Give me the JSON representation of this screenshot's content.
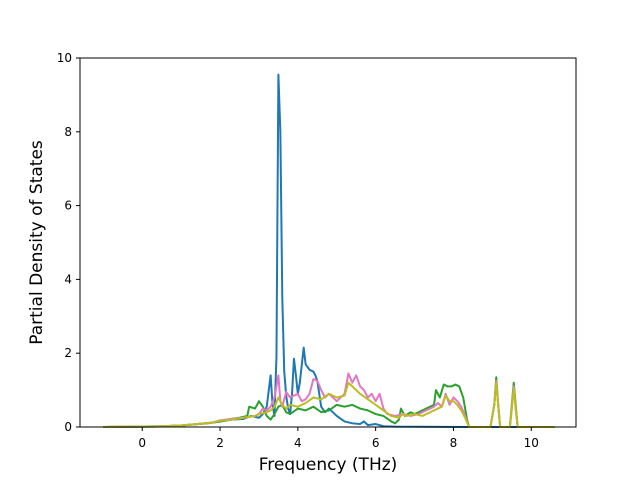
{
  "chart_data": {
    "type": "line",
    "title": "",
    "xlabel": "Frequency (THz)",
    "ylabel": "Partial Density of States",
    "xlim": [
      -1.6,
      11.15
    ],
    "ylim": [
      0,
      10
    ],
    "xticks": [
      0,
      2,
      4,
      6,
      8,
      10
    ],
    "yticks": [
      0,
      2,
      4,
      6,
      8,
      10
    ],
    "grid": false,
    "legend": "none",
    "series": [
      {
        "color": "#1f77b4",
        "points": [
          [
            -1.0,
            0
          ],
          [
            0.3,
            0.01
          ],
          [
            1.0,
            0.04
          ],
          [
            1.7,
            0.1
          ],
          [
            2.0,
            0.15
          ],
          [
            2.3,
            0.2
          ],
          [
            2.6,
            0.22
          ],
          [
            2.8,
            0.3
          ],
          [
            3.0,
            0.25
          ],
          [
            3.1,
            0.35
          ],
          [
            3.2,
            0.55
          ],
          [
            3.3,
            1.4
          ],
          [
            3.35,
            0.6
          ],
          [
            3.4,
            0.3
          ],
          [
            3.45,
            1.9
          ],
          [
            3.5,
            9.55
          ],
          [
            3.55,
            8.0
          ],
          [
            3.6,
            3.5
          ],
          [
            3.65,
            1.5
          ],
          [
            3.7,
            0.85
          ],
          [
            3.75,
            0.5
          ],
          [
            3.8,
            0.35
          ],
          [
            3.85,
            0.9
          ],
          [
            3.9,
            1.85
          ],
          [
            3.95,
            1.4
          ],
          [
            4.0,
            0.9
          ],
          [
            4.05,
            1.2
          ],
          [
            4.15,
            2.15
          ],
          [
            4.2,
            1.7
          ],
          [
            4.3,
            1.55
          ],
          [
            4.4,
            1.5
          ],
          [
            4.45,
            1.4
          ],
          [
            4.5,
            1.25
          ],
          [
            4.6,
            0.55
          ],
          [
            4.7,
            0.4
          ],
          [
            4.8,
            0.5
          ],
          [
            5.0,
            0.3
          ],
          [
            5.2,
            0.15
          ],
          [
            5.4,
            0.1
          ],
          [
            5.6,
            0.08
          ],
          [
            5.7,
            0.15
          ],
          [
            5.8,
            0.05
          ],
          [
            6.0,
            0.08
          ],
          [
            6.2,
            0.02
          ],
          [
            6.5,
            0.01
          ],
          [
            8.4,
            0
          ],
          [
            10.6,
            0
          ]
        ]
      },
      {
        "color": "#2ca02c",
        "points": [
          [
            -1.0,
            0
          ],
          [
            0.5,
            0.02
          ],
          [
            1.0,
            0.04
          ],
          [
            1.8,
            0.12
          ],
          [
            2.0,
            0.15
          ],
          [
            2.3,
            0.22
          ],
          [
            2.5,
            0.25
          ],
          [
            2.7,
            0.3
          ],
          [
            2.75,
            0.55
          ],
          [
            2.9,
            0.5
          ],
          [
            3.0,
            0.7
          ],
          [
            3.1,
            0.55
          ],
          [
            3.2,
            0.3
          ],
          [
            3.3,
            0.2
          ],
          [
            3.4,
            0.35
          ],
          [
            3.5,
            0.55
          ],
          [
            3.6,
            0.6
          ],
          [
            3.7,
            0.4
          ],
          [
            3.8,
            0.35
          ],
          [
            4.0,
            0.5
          ],
          [
            4.2,
            0.45
          ],
          [
            4.4,
            0.55
          ],
          [
            4.6,
            0.4
          ],
          [
            4.8,
            0.45
          ],
          [
            5.0,
            0.6
          ],
          [
            5.2,
            0.55
          ],
          [
            5.4,
            0.6
          ],
          [
            5.6,
            0.5
          ],
          [
            5.8,
            0.45
          ],
          [
            6.0,
            0.35
          ],
          [
            6.2,
            0.3
          ],
          [
            6.4,
            0.15
          ],
          [
            6.5,
            0.1
          ],
          [
            6.6,
            0.2
          ],
          [
            6.65,
            0.5
          ],
          [
            6.75,
            0.3
          ],
          [
            6.9,
            0.4
          ],
          [
            7.0,
            0.35
          ],
          [
            7.1,
            0.4
          ],
          [
            7.2,
            0.45
          ],
          [
            7.3,
            0.5
          ],
          [
            7.4,
            0.55
          ],
          [
            7.5,
            0.6
          ],
          [
            7.55,
            1.0
          ],
          [
            7.65,
            0.8
          ],
          [
            7.75,
            1.15
          ],
          [
            7.85,
            1.1
          ],
          [
            7.95,
            1.1
          ],
          [
            8.05,
            1.15
          ],
          [
            8.15,
            1.1
          ],
          [
            8.25,
            0.8
          ],
          [
            8.35,
            0.2
          ],
          [
            8.4,
            0
          ],
          [
            8.95,
            0
          ],
          [
            9.05,
            0.6
          ],
          [
            9.1,
            1.35
          ],
          [
            9.15,
            0.6
          ],
          [
            9.2,
            0
          ],
          [
            9.45,
            0
          ],
          [
            9.5,
            0.6
          ],
          [
            9.55,
            1.2
          ],
          [
            9.6,
            0.6
          ],
          [
            9.65,
            0
          ],
          [
            10.6,
            0
          ]
        ]
      },
      {
        "color": "#e377c2",
        "points": [
          [
            -1.0,
            0
          ],
          [
            0.5,
            0.02
          ],
          [
            1.0,
            0.04
          ],
          [
            1.8,
            0.12
          ],
          [
            2.0,
            0.18
          ],
          [
            2.3,
            0.22
          ],
          [
            2.6,
            0.25
          ],
          [
            2.9,
            0.3
          ],
          [
            3.0,
            0.35
          ],
          [
            3.1,
            0.5
          ],
          [
            3.2,
            0.45
          ],
          [
            3.3,
            0.55
          ],
          [
            3.4,
            0.8
          ],
          [
            3.5,
            1.4
          ],
          [
            3.55,
            0.7
          ],
          [
            3.6,
            0.55
          ],
          [
            3.7,
            0.95
          ],
          [
            3.8,
            0.8
          ],
          [
            3.9,
            0.85
          ],
          [
            4.0,
            0.9
          ],
          [
            4.1,
            0.7
          ],
          [
            4.2,
            0.75
          ],
          [
            4.3,
            0.9
          ],
          [
            4.4,
            1.3
          ],
          [
            4.5,
            1.25
          ],
          [
            4.6,
            1.0
          ],
          [
            4.7,
            0.8
          ],
          [
            4.8,
            0.9
          ],
          [
            5.0,
            0.7
          ],
          [
            5.2,
            0.9
          ],
          [
            5.3,
            1.45
          ],
          [
            5.4,
            1.2
          ],
          [
            5.5,
            1.4
          ],
          [
            5.6,
            1.1
          ],
          [
            5.7,
            1.0
          ],
          [
            5.8,
            0.8
          ],
          [
            5.9,
            0.9
          ],
          [
            6.0,
            0.7
          ],
          [
            6.1,
            0.9
          ],
          [
            6.2,
            0.5
          ],
          [
            6.3,
            0.35
          ],
          [
            6.5,
            0.3
          ],
          [
            6.7,
            0.35
          ],
          [
            6.9,
            0.3
          ],
          [
            7.1,
            0.35
          ],
          [
            7.3,
            0.45
          ],
          [
            7.5,
            0.55
          ],
          [
            7.6,
            0.65
          ],
          [
            7.7,
            0.55
          ],
          [
            7.8,
            0.9
          ],
          [
            7.9,
            0.6
          ],
          [
            8.0,
            0.8
          ],
          [
            8.1,
            0.7
          ],
          [
            8.2,
            0.55
          ],
          [
            8.3,
            0.3
          ],
          [
            8.4,
            0
          ],
          [
            8.95,
            0
          ],
          [
            9.05,
            0.6
          ],
          [
            9.1,
            1.25
          ],
          [
            9.15,
            0.6
          ],
          [
            9.2,
            0
          ],
          [
            9.45,
            0
          ],
          [
            9.5,
            0.5
          ],
          [
            9.55,
            1.1
          ],
          [
            9.6,
            0.5
          ],
          [
            9.65,
            0
          ],
          [
            10.6,
            0
          ]
        ]
      },
      {
        "color": "#bcbd22",
        "points": [
          [
            -1.0,
            0
          ],
          [
            0.5,
            0.02
          ],
          [
            1.0,
            0.04
          ],
          [
            1.8,
            0.12
          ],
          [
            2.0,
            0.17
          ],
          [
            2.3,
            0.2
          ],
          [
            2.6,
            0.25
          ],
          [
            2.9,
            0.3
          ],
          [
            3.0,
            0.35
          ],
          [
            3.2,
            0.4
          ],
          [
            3.3,
            0.45
          ],
          [
            3.4,
            0.55
          ],
          [
            3.5,
            0.8
          ],
          [
            3.6,
            0.6
          ],
          [
            3.7,
            0.5
          ],
          [
            3.8,
            0.6
          ],
          [
            4.0,
            0.55
          ],
          [
            4.2,
            0.65
          ],
          [
            4.4,
            0.8
          ],
          [
            4.6,
            0.75
          ],
          [
            4.8,
            0.9
          ],
          [
            5.0,
            0.8
          ],
          [
            5.2,
            0.85
          ],
          [
            5.3,
            1.2
          ],
          [
            5.4,
            1.1
          ],
          [
            5.5,
            1.0
          ],
          [
            5.6,
            0.9
          ],
          [
            5.8,
            0.75
          ],
          [
            6.0,
            0.6
          ],
          [
            6.2,
            0.45
          ],
          [
            6.4,
            0.3
          ],
          [
            6.6,
            0.25
          ],
          [
            6.7,
            0.35
          ],
          [
            6.8,
            0.3
          ],
          [
            7.0,
            0.35
          ],
          [
            7.2,
            0.3
          ],
          [
            7.4,
            0.4
          ],
          [
            7.6,
            0.5
          ],
          [
            7.7,
            0.55
          ],
          [
            7.8,
            0.85
          ],
          [
            7.9,
            0.7
          ],
          [
            8.0,
            0.7
          ],
          [
            8.1,
            0.6
          ],
          [
            8.2,
            0.45
          ],
          [
            8.3,
            0.25
          ],
          [
            8.4,
            0
          ],
          [
            8.95,
            0
          ],
          [
            9.05,
            0.6
          ],
          [
            9.1,
            1.2
          ],
          [
            9.15,
            0.6
          ],
          [
            9.2,
            0
          ],
          [
            9.45,
            0
          ],
          [
            9.5,
            0.5
          ],
          [
            9.55,
            1.05
          ],
          [
            9.6,
            0.5
          ],
          [
            9.65,
            0
          ],
          [
            10.6,
            0
          ]
        ]
      }
    ]
  }
}
